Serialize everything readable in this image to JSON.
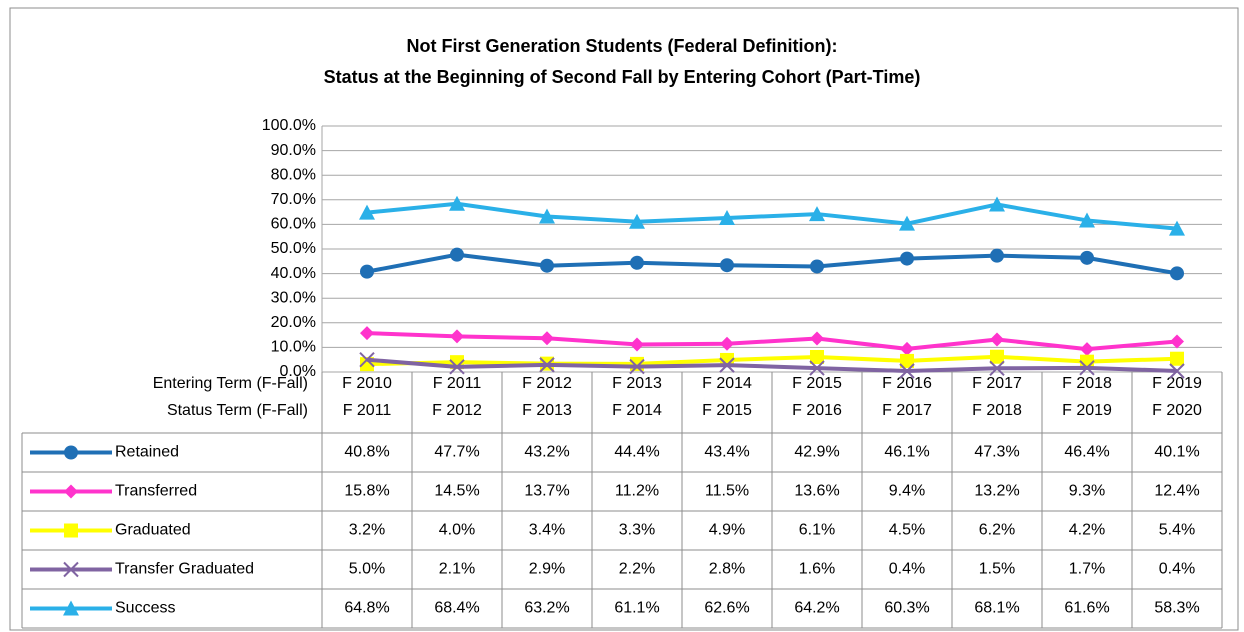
{
  "chart_data": {
    "type": "line",
    "title": "Not First Generation Students (Federal Definition):",
    "subtitle": "Status at the Beginning of Second Fall by Entering Cohort (Part-Time)",
    "row_label_1": "Entering Term (F-Fall)",
    "row_label_2": "Status Term (F-Fall)",
    "categories": [
      "F 2010",
      "F 2011",
      "F 2012",
      "F 2013",
      "F 2014",
      "F 2015",
      "F 2016",
      "F 2017",
      "F 2018",
      "F 2019"
    ],
    "status_terms": [
      "F 2011",
      "F 2012",
      "F 2013",
      "F 2014",
      "F 2015",
      "F 2016",
      "F 2017",
      "F 2018",
      "F 2019",
      "F 2020"
    ],
    "ylim": [
      0,
      100
    ],
    "yticks": [
      {
        "value": 0,
        "label": "0.0%"
      },
      {
        "value": 10,
        "label": "10.0%"
      },
      {
        "value": 20,
        "label": "20.0%"
      },
      {
        "value": 30,
        "label": "30.0%"
      },
      {
        "value": 40,
        "label": "40.0%"
      },
      {
        "value": 50,
        "label": "50.0%"
      },
      {
        "value": 60,
        "label": "60.0%"
      },
      {
        "value": 70,
        "label": "70.0%"
      },
      {
        "value": 80,
        "label": "80.0%"
      },
      {
        "value": 90,
        "label": "90.0%"
      },
      {
        "value": 100,
        "label": "100.0%"
      }
    ],
    "grid": true,
    "series": [
      {
        "name": "Retained",
        "color": "#1F6FB5",
        "marker": "circle",
        "values": [
          40.8,
          47.7,
          43.2,
          44.4,
          43.4,
          42.9,
          46.1,
          47.3,
          46.4,
          40.1
        ],
        "value_labels": [
          "40.8%",
          "47.7%",
          "43.2%",
          "44.4%",
          "43.4%",
          "42.9%",
          "46.1%",
          "47.3%",
          "46.4%",
          "40.1%"
        ]
      },
      {
        "name": "Transferred",
        "color": "#FF33CC",
        "marker": "diamond",
        "values": [
          15.8,
          14.5,
          13.7,
          11.2,
          11.5,
          13.6,
          9.4,
          13.2,
          9.3,
          12.4
        ],
        "value_labels": [
          "15.8%",
          "14.5%",
          "13.7%",
          "11.2%",
          "11.5%",
          "13.6%",
          "9.4%",
          "13.2%",
          "9.3%",
          "12.4%"
        ]
      },
      {
        "name": "Graduated",
        "color": "#FFFF00",
        "marker": "square",
        "values": [
          3.2,
          4.0,
          3.4,
          3.3,
          4.9,
          6.1,
          4.5,
          6.2,
          4.2,
          5.4
        ],
        "value_labels": [
          "3.2%",
          "4.0%",
          "3.4%",
          "3.3%",
          "4.9%",
          "6.1%",
          "4.5%",
          "6.2%",
          "4.2%",
          "5.4%"
        ]
      },
      {
        "name": "Transfer Graduated",
        "color": "#8064A2",
        "marker": "x",
        "values": [
          5.0,
          2.1,
          2.9,
          2.2,
          2.8,
          1.6,
          0.4,
          1.5,
          1.7,
          0.4
        ],
        "value_labels": [
          "5.0%",
          "2.1%",
          "2.9%",
          "2.2%",
          "2.8%",
          "1.6%",
          "0.4%",
          "1.5%",
          "1.7%",
          "0.4%"
        ]
      },
      {
        "name": "Success",
        "color": "#2AB0E8",
        "marker": "triangle",
        "values": [
          64.8,
          68.4,
          63.2,
          61.1,
          62.6,
          64.2,
          60.3,
          68.1,
          61.6,
          58.3
        ],
        "value_labels": [
          "64.8%",
          "68.4%",
          "63.2%",
          "61.1%",
          "62.6%",
          "64.2%",
          "60.3%",
          "68.1%",
          "61.6%",
          "58.3%"
        ]
      }
    ]
  }
}
